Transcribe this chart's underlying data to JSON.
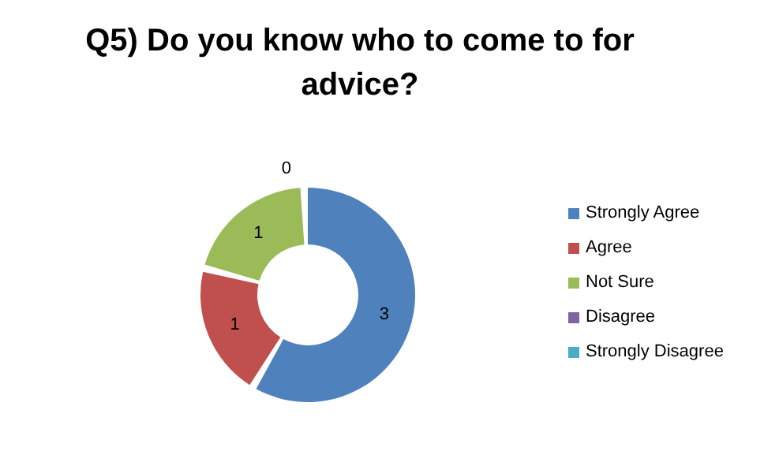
{
  "chart_data": {
    "type": "donut",
    "title": "Q5) Do you know who to come to for advice?",
    "categories": [
      "Strongly Agree",
      "Agree",
      "Not Sure",
      "Disagree",
      "Strongly Disagree"
    ],
    "values": [
      3,
      1,
      1,
      0,
      0
    ],
    "colors": [
      "#4f81bd",
      "#c0504d",
      "#9bbb59",
      "#8064a2",
      "#4bacc6"
    ],
    "value_labels": [
      "3",
      "1",
      "1",
      "0",
      null
    ],
    "legend": "right"
  }
}
